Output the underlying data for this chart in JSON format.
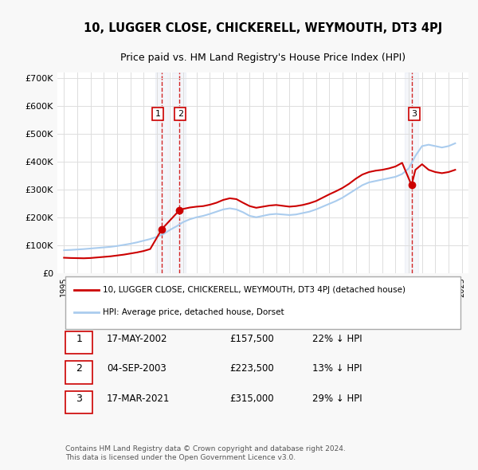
{
  "title": "10, LUGGER CLOSE, CHICKERELL, WEYMOUTH, DT3 4PJ",
  "subtitle": "Price paid vs. HM Land Registry's House Price Index (HPI)",
  "ylabel_ticks": [
    "£0",
    "£100K",
    "£200K",
    "£300K",
    "£400K",
    "£500K",
    "£600K",
    "£700K"
  ],
  "ytick_values": [
    0,
    100000,
    200000,
    300000,
    400000,
    500000,
    600000,
    700000
  ],
  "ylim": [
    0,
    720000
  ],
  "xlim_start": 1994.5,
  "xlim_end": 2025.5,
  "sale_dates": [
    2002.38,
    2003.67,
    2021.21
  ],
  "sale_prices": [
    157500,
    223500,
    315000
  ],
  "sale_labels": [
    "1",
    "2",
    "3"
  ],
  "vline_x": [
    2002.38,
    2003.67,
    2021.21
  ],
  "hpi_years": [
    1995,
    1995.5,
    1996,
    1996.5,
    1997,
    1997.5,
    1998,
    1998.5,
    1999,
    1999.5,
    2000,
    2000.5,
    2001,
    2001.5,
    2002,
    2002.5,
    2003,
    2003.5,
    2004,
    2004.5,
    2005,
    2005.5,
    2006,
    2006.5,
    2007,
    2007.5,
    2008,
    2008.5,
    2009,
    2009.5,
    2010,
    2010.5,
    2011,
    2011.5,
    2012,
    2012.5,
    2013,
    2013.5,
    2014,
    2014.5,
    2015,
    2015.5,
    2016,
    2016.5,
    2017,
    2017.5,
    2018,
    2018.5,
    2019,
    2019.5,
    2020,
    2020.5,
    2021,
    2021.5,
    2022,
    2022.5,
    2023,
    2023.5,
    2024,
    2024.5
  ],
  "hpi_values": [
    82000,
    83000,
    84500,
    86000,
    88000,
    90000,
    92000,
    94000,
    97000,
    101000,
    105000,
    110000,
    116000,
    122000,
    130000,
    140000,
    155000,
    168000,
    183000,
    193000,
    200000,
    205000,
    212000,
    220000,
    228000,
    232000,
    228000,
    218000,
    205000,
    200000,
    205000,
    210000,
    212000,
    210000,
    208000,
    210000,
    215000,
    220000,
    228000,
    238000,
    248000,
    258000,
    270000,
    285000,
    300000,
    315000,
    325000,
    330000,
    335000,
    340000,
    345000,
    355000,
    375000,
    420000,
    455000,
    460000,
    455000,
    450000,
    455000,
    465000
  ],
  "red_line_years": [
    1995,
    1995.5,
    1996,
    1996.5,
    1997,
    1997.5,
    1998,
    1998.5,
    1999,
    1999.5,
    2000,
    2000.5,
    2001,
    2001.5,
    2002.38,
    2002.38,
    2003.67,
    2003.67,
    2004,
    2004.5,
    2005,
    2005.5,
    2006,
    2006.5,
    2007,
    2007.5,
    2008,
    2008.5,
    2009,
    2009.5,
    2010,
    2010.5,
    2011,
    2011.5,
    2012,
    2012.5,
    2013,
    2013.5,
    2014,
    2014.5,
    2015,
    2015.5,
    2016,
    2016.5,
    2017,
    2017.5,
    2018,
    2018.5,
    2019,
    2019.5,
    2020,
    2020.5,
    2021.21,
    2021.21,
    2021.5,
    2022,
    2022.5,
    2023,
    2023.5,
    2024,
    2024.5
  ],
  "red_line_values": [
    55000,
    54000,
    53500,
    53000,
    54000,
    56000,
    58000,
    60000,
    63000,
    66000,
    70000,
    74000,
    79000,
    86000,
    157500,
    157500,
    223500,
    223500,
    230000,
    235000,
    238000,
    240000,
    245000,
    252000,
    262000,
    268000,
    265000,
    252000,
    240000,
    234000,
    238000,
    242000,
    244000,
    241000,
    238000,
    240000,
    244000,
    250000,
    258000,
    270000,
    282000,
    293000,
    305000,
    320000,
    338000,
    353000,
    362000,
    367000,
    370000,
    375000,
    382000,
    395000,
    315000,
    315000,
    370000,
    390000,
    370000,
    362000,
    358000,
    362000,
    370000
  ],
  "bg_color": "#f8f8f8",
  "plot_bg_color": "#ffffff",
  "hpi_line_color": "#aaccee",
  "red_line_color": "#cc0000",
  "vline_color": "#cc0000",
  "sale_marker_color": "#cc0000",
  "grid_color": "#dddddd",
  "legend_entries": [
    "10, LUGGER CLOSE, CHICKERELL, WEYMOUTH, DT3 4PJ (detached house)",
    "HPI: Average price, detached house, Dorset"
  ],
  "table_data": [
    [
      "1",
      "17-MAY-2002",
      "£157,500",
      "22% ↓ HPI"
    ],
    [
      "2",
      "04-SEP-2003",
      "£223,500",
      "13% ↓ HPI"
    ],
    [
      "3",
      "17-MAR-2021",
      "£315,000",
      "29% ↓ HPI"
    ]
  ],
  "footnote": "Contains HM Land Registry data © Crown copyright and database right 2024.\nThis data is licensed under the Open Government Licence v3.0.",
  "xtick_years": [
    1995,
    1996,
    1997,
    1998,
    1999,
    2000,
    2001,
    2002,
    2003,
    2004,
    2005,
    2006,
    2007,
    2008,
    2009,
    2010,
    2011,
    2012,
    2013,
    2014,
    2015,
    2016,
    2017,
    2018,
    2019,
    2020,
    2021,
    2022,
    2023,
    2024,
    2025
  ]
}
